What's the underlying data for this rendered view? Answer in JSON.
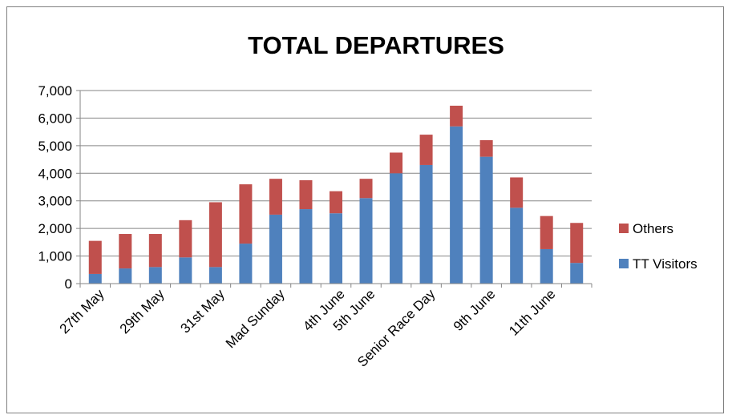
{
  "chart_data": {
    "type": "bar",
    "stacked": true,
    "title": "TOTAL DEPARTURES",
    "xlabel": "",
    "ylabel": "",
    "ylim": [
      0,
      7000
    ],
    "yticks": [
      0,
      1000,
      2000,
      3000,
      4000,
      5000,
      6000,
      7000
    ],
    "ytick_labels": [
      "0",
      "1,000",
      "2,000",
      "3,000",
      "4,000",
      "5,000",
      "6,000",
      "7,000"
    ],
    "categories": [
      "27th May",
      "",
      "29th May",
      "",
      "31st May",
      "",
      "Mad Sunday",
      "",
      "4th June",
      "5th June",
      "",
      "Senior Race Day",
      "",
      "9th June",
      "",
      "11th June",
      ""
    ],
    "series": [
      {
        "name": "TT Visitors",
        "color": "#4f81bd",
        "values": [
          350,
          550,
          600,
          950,
          600,
          1450,
          2500,
          2700,
          2550,
          3100,
          4000,
          4300,
          5700,
          4600,
          2750,
          1250,
          750
        ]
      },
      {
        "name": "Others",
        "color": "#c0504d",
        "values": [
          1200,
          1250,
          1200,
          1350,
          2350,
          2150,
          1300,
          1050,
          800,
          700,
          750,
          1100,
          750,
          600,
          1100,
          1200,
          1450
        ]
      }
    ],
    "grid": true,
    "legend": "right"
  }
}
